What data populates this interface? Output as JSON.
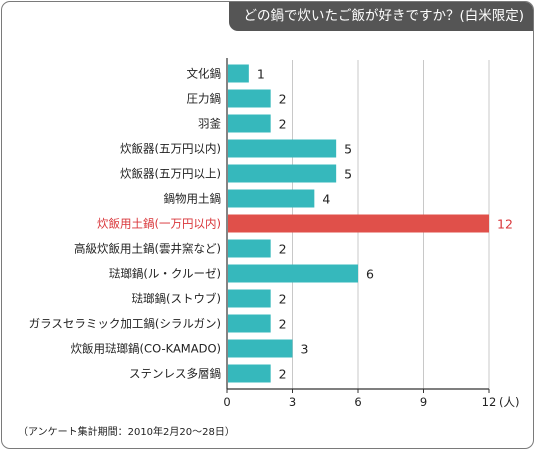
{
  "title": "どの鍋で炊いたご飯が好きですか？(白米限定)",
  "footnote": "（アンケート集計期間：2010年2月20〜28日）",
  "colors": {
    "bar": "#36b8bc",
    "highlight_bar": "#e0504a",
    "highlight_text": "#d9363a",
    "title_bg": "#555555",
    "grid": "#c8c8c8"
  },
  "chart_data": {
    "type": "bar",
    "orientation": "horizontal",
    "title": "どの鍋で炊いたご飯が好きですか？(白米限定)",
    "xlabel": "",
    "ylabel": "",
    "unit": "(人)",
    "xlim": [
      0,
      12
    ],
    "xticks": [
      0,
      3,
      6,
      9,
      12
    ],
    "grid": "vertical lines at ticks",
    "highlight_category": "炊飯用土鍋(一万円以内)",
    "categories": [
      "文化鍋",
      "圧力鍋",
      "羽釜",
      "炊飯器(五万円以内)",
      "炊飯器(五万円以上)",
      "鍋物用土鍋",
      "炊飯用土鍋(一万円以内)",
      "高級炊飯用土鍋(雲井窯など)",
      "琺瑯鍋(ル・クルーゼ)",
      "琺瑯鍋(ストウブ)",
      "ガラスセラミック加工鍋(シラルガン)",
      "炊飯用琺瑯鍋(CO-KAMADO)",
      "ステンレス多層鍋"
    ],
    "values": [
      1,
      2,
      2,
      5,
      5,
      4,
      12,
      2,
      6,
      2,
      2,
      3,
      2
    ]
  }
}
